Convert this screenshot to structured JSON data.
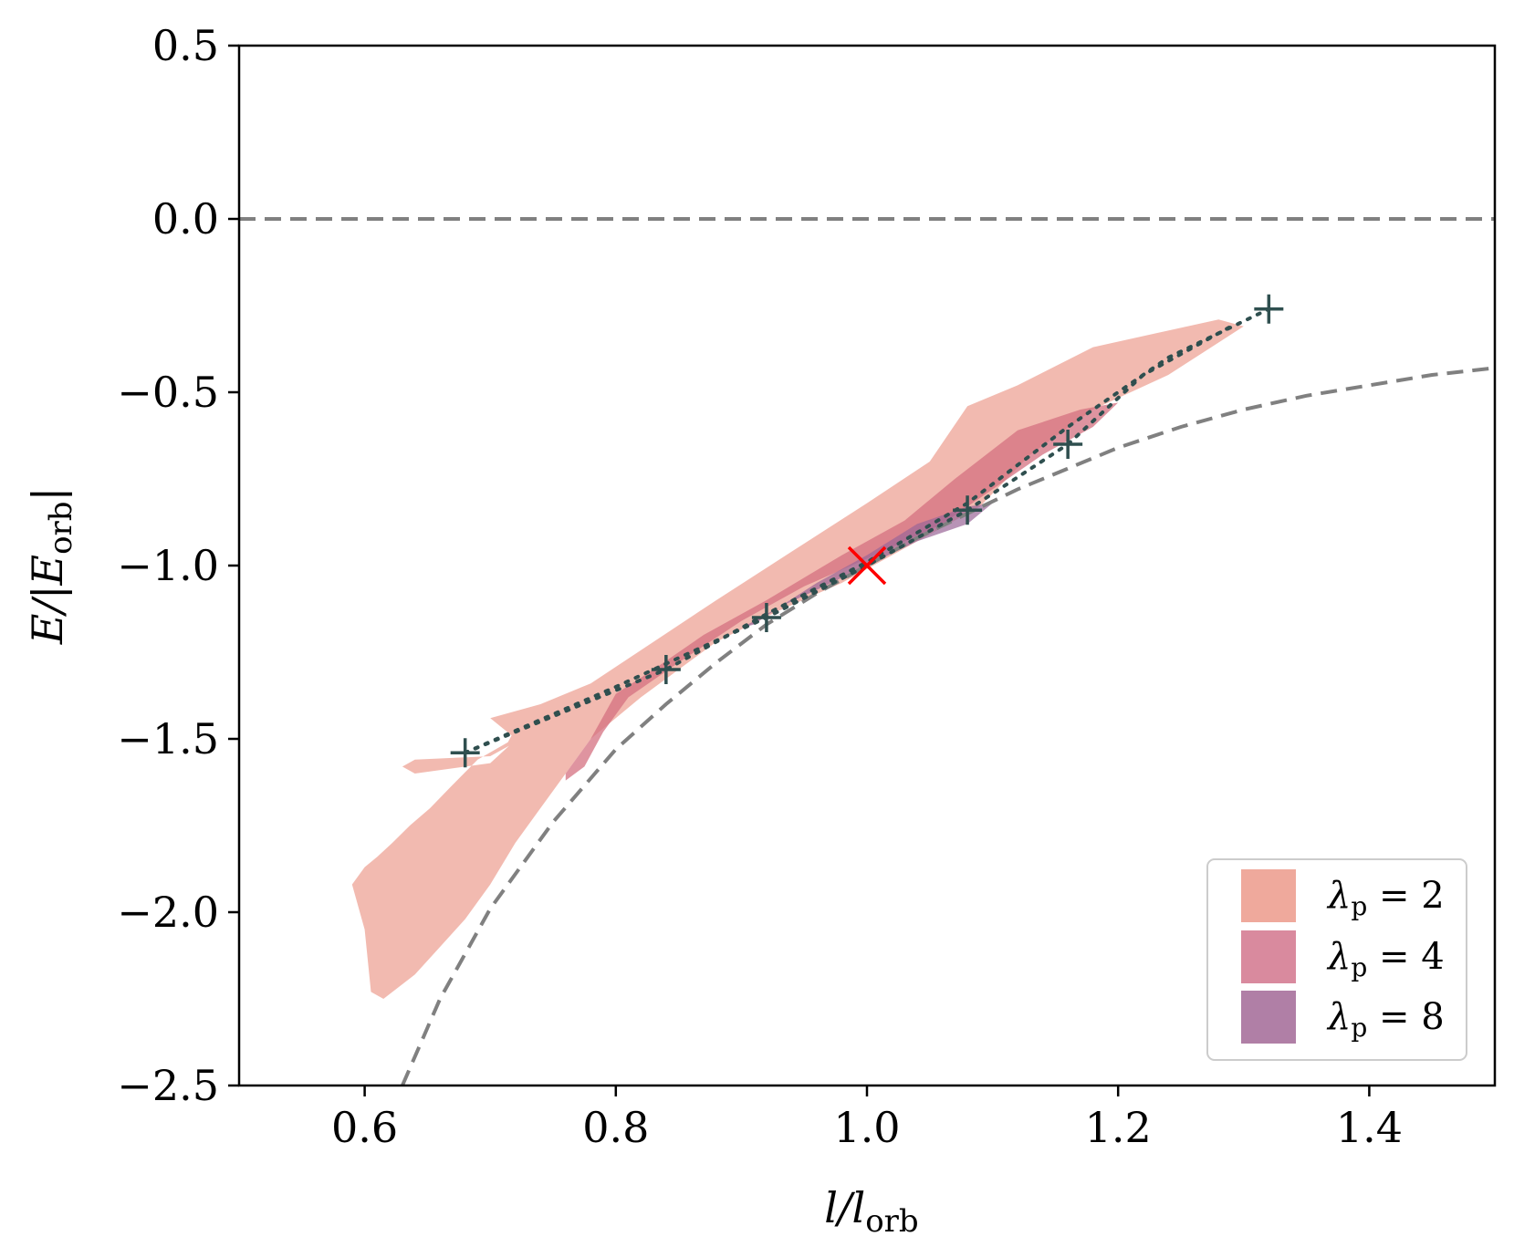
{
  "chart_data": {
    "type": "scatter",
    "xlabel": "l/l",
    "xlabel_sub": "orb",
    "ylabel": "E/|E",
    "ylabel_sub": "orb",
    "ylabel_tail": "|",
    "xlim": [
      0.5,
      1.5
    ],
    "ylim": [
      -2.5,
      0.5
    ],
    "x_ticks": [
      0.6,
      0.8,
      1.0,
      1.2,
      1.4
    ],
    "x_tick_labels": [
      "0.6",
      "0.8",
      "1.0",
      "1.2",
      "1.4"
    ],
    "y_ticks": [
      0.5,
      0.0,
      -0.5,
      -1.0,
      -1.5,
      -2.0,
      -2.5
    ],
    "y_tick_labels": [
      "0.5",
      "0.0",
      "−0.5",
      "−1.0",
      "−1.5",
      "−2.0",
      "−2.5"
    ],
    "grid": false,
    "legend_position": "bottom-right",
    "legend": [
      {
        "label": "λ",
        "sub": "p",
        "rest": " = 2",
        "color": "#efa99c"
      },
      {
        "label": "λ",
        "sub": "p",
        "rest": " = 4",
        "color": "#d98a9e"
      },
      {
        "label": "λ",
        "sub": "p",
        "rest": " = 8",
        "color": "#b07fa6"
      }
    ],
    "reference_lines": [
      {
        "name": "zero-energy",
        "y": 0.0,
        "style": "dashed",
        "color": "#808080"
      },
      {
        "name": "circular-orbit-curve",
        "formula": "E = -1/(2 x^2) + ...",
        "style": "dashed",
        "color": "#808080",
        "points": [
          [
            0.63,
            -2.5
          ],
          [
            0.66,
            -2.25
          ],
          [
            0.7,
            -1.99
          ],
          [
            0.75,
            -1.74
          ],
          [
            0.8,
            -1.53
          ],
          [
            0.84,
            -1.4
          ],
          [
            0.88,
            -1.28
          ],
          [
            0.92,
            -1.17
          ],
          [
            0.96,
            -1.08
          ],
          [
            1.0,
            -1.0
          ],
          [
            1.04,
            -0.92
          ],
          [
            1.08,
            -0.85
          ],
          [
            1.12,
            -0.78
          ],
          [
            1.16,
            -0.72
          ],
          [
            1.2,
            -0.66
          ],
          [
            1.25,
            -0.6
          ],
          [
            1.3,
            -0.55
          ],
          [
            1.35,
            -0.51
          ],
          [
            1.4,
            -0.48
          ],
          [
            1.45,
            -0.45
          ],
          [
            1.5,
            -0.43
          ]
        ]
      }
    ],
    "regions": [
      {
        "name": "lambda-p-2",
        "color": "#efa99c",
        "opacity": 0.8,
        "polygon": [
          [
            0.59,
            -1.92
          ],
          [
            0.6,
            -1.87
          ],
          [
            0.61,
            -1.84
          ],
          [
            0.622,
            -1.8
          ],
          [
            0.636,
            -1.75
          ],
          [
            0.652,
            -1.7
          ],
          [
            0.668,
            -1.64
          ],
          [
            0.69,
            -1.56
          ],
          [
            0.714,
            -1.51
          ],
          [
            0.717,
            -1.49
          ],
          [
            0.7,
            -1.44
          ],
          [
            0.74,
            -1.4
          ],
          [
            0.78,
            -1.34
          ],
          [
            0.83,
            -1.22
          ],
          [
            0.88,
            -1.1
          ],
          [
            0.94,
            -0.96
          ],
          [
            1.0,
            -0.82
          ],
          [
            1.05,
            -0.7
          ],
          [
            1.08,
            -0.54
          ],
          [
            1.12,
            -0.48
          ],
          [
            1.18,
            -0.37
          ],
          [
            1.23,
            -0.33
          ],
          [
            1.28,
            -0.29
          ],
          [
            1.3,
            -0.31
          ],
          [
            1.24,
            -0.45
          ],
          [
            1.18,
            -0.55
          ],
          [
            1.13,
            -0.68
          ],
          [
            1.09,
            -0.83
          ],
          [
            1.03,
            -0.95
          ],
          [
            0.98,
            -1.05
          ],
          [
            0.93,
            -1.13
          ],
          [
            0.88,
            -1.22
          ],
          [
            0.82,
            -1.38
          ],
          [
            0.78,
            -1.5
          ],
          [
            0.76,
            -1.6
          ],
          [
            0.74,
            -1.7
          ],
          [
            0.72,
            -1.8
          ],
          [
            0.7,
            -1.92
          ],
          [
            0.68,
            -2.02
          ],
          [
            0.66,
            -2.1
          ],
          [
            0.64,
            -2.18
          ],
          [
            0.615,
            -2.25
          ],
          [
            0.605,
            -2.23
          ],
          [
            0.6,
            -2.05
          ],
          [
            0.59,
            -1.92
          ]
        ],
        "cutout": [
          [
            0.63,
            -1.58
          ],
          [
            0.64,
            -1.6
          ],
          [
            0.7,
            -1.57
          ],
          [
            0.715,
            -1.52
          ],
          [
            0.7,
            -1.55
          ],
          [
            0.64,
            -1.56
          ],
          [
            0.63,
            -1.58
          ]
        ]
      },
      {
        "name": "lambda-p-4",
        "color": "#d47080",
        "opacity": 0.75,
        "polygon": [
          [
            0.76,
            -1.6
          ],
          [
            0.78,
            -1.5
          ],
          [
            0.8,
            -1.37
          ],
          [
            0.83,
            -1.3
          ],
          [
            0.87,
            -1.2
          ],
          [
            0.92,
            -1.1
          ],
          [
            0.98,
            -0.97
          ],
          [
            1.03,
            -0.87
          ],
          [
            1.07,
            -0.75
          ],
          [
            1.12,
            -0.61
          ],
          [
            1.17,
            -0.55
          ],
          [
            1.2,
            -0.53
          ],
          [
            1.18,
            -0.6
          ],
          [
            1.14,
            -0.68
          ],
          [
            1.1,
            -0.78
          ],
          [
            1.06,
            -0.88
          ],
          [
            1.0,
            -0.98
          ],
          [
            0.95,
            -1.06
          ],
          [
            0.9,
            -1.16
          ],
          [
            0.85,
            -1.28
          ],
          [
            0.81,
            -1.38
          ],
          [
            0.79,
            -1.48
          ],
          [
            0.775,
            -1.58
          ],
          [
            0.76,
            -1.62
          ],
          [
            0.76,
            -1.6
          ]
        ]
      },
      {
        "name": "lambda-p-8",
        "color": "#9a6597",
        "opacity": 0.7,
        "polygon": [
          [
            0.9,
            -1.18
          ],
          [
            0.93,
            -1.12
          ],
          [
            0.96,
            -1.05
          ],
          [
            1.0,
            -0.97
          ],
          [
            1.04,
            -0.88
          ],
          [
            1.08,
            -0.83
          ],
          [
            1.1,
            -0.82
          ],
          [
            1.08,
            -0.88
          ],
          [
            1.04,
            -0.93
          ],
          [
            1.0,
            -1.0
          ],
          [
            0.96,
            -1.07
          ],
          [
            0.93,
            -1.12
          ],
          [
            0.91,
            -1.17
          ],
          [
            0.9,
            -1.18
          ]
        ]
      }
    ],
    "series": [
      {
        "name": "dotted-track-upper",
        "style": "dotted",
        "color": "#2f4f4f",
        "points": [
          [
            0.68,
            -1.54
          ],
          [
            0.8,
            -1.35
          ],
          [
            0.92,
            -1.15
          ],
          [
            1.0,
            -1.0
          ],
          [
            1.08,
            -0.84
          ],
          [
            1.16,
            -0.65
          ],
          [
            1.22,
            -0.45
          ],
          [
            1.29,
            -0.31
          ]
        ]
      },
      {
        "name": "dotted-track-lower",
        "style": "dotted",
        "color": "#2f4f4f",
        "points": [
          [
            0.68,
            -1.54
          ],
          [
            0.84,
            -1.3
          ],
          [
            0.92,
            -1.14
          ],
          [
            1.0,
            -0.99
          ],
          [
            1.08,
            -0.82
          ],
          [
            1.16,
            -0.6
          ],
          [
            1.24,
            -0.4
          ],
          [
            1.32,
            -0.26
          ]
        ]
      },
      {
        "name": "plus-markers",
        "marker": "+",
        "color": "#2f4f4f",
        "points": [
          [
            0.68,
            -1.54
          ],
          [
            0.84,
            -1.3
          ],
          [
            0.92,
            -1.15
          ],
          [
            1.08,
            -0.84
          ],
          [
            1.16,
            -0.65
          ],
          [
            1.32,
            -0.26
          ]
        ]
      },
      {
        "name": "x-marker",
        "marker": "x",
        "color": "#ff0000",
        "points": [
          [
            1.0,
            -1.0
          ]
        ]
      }
    ]
  }
}
